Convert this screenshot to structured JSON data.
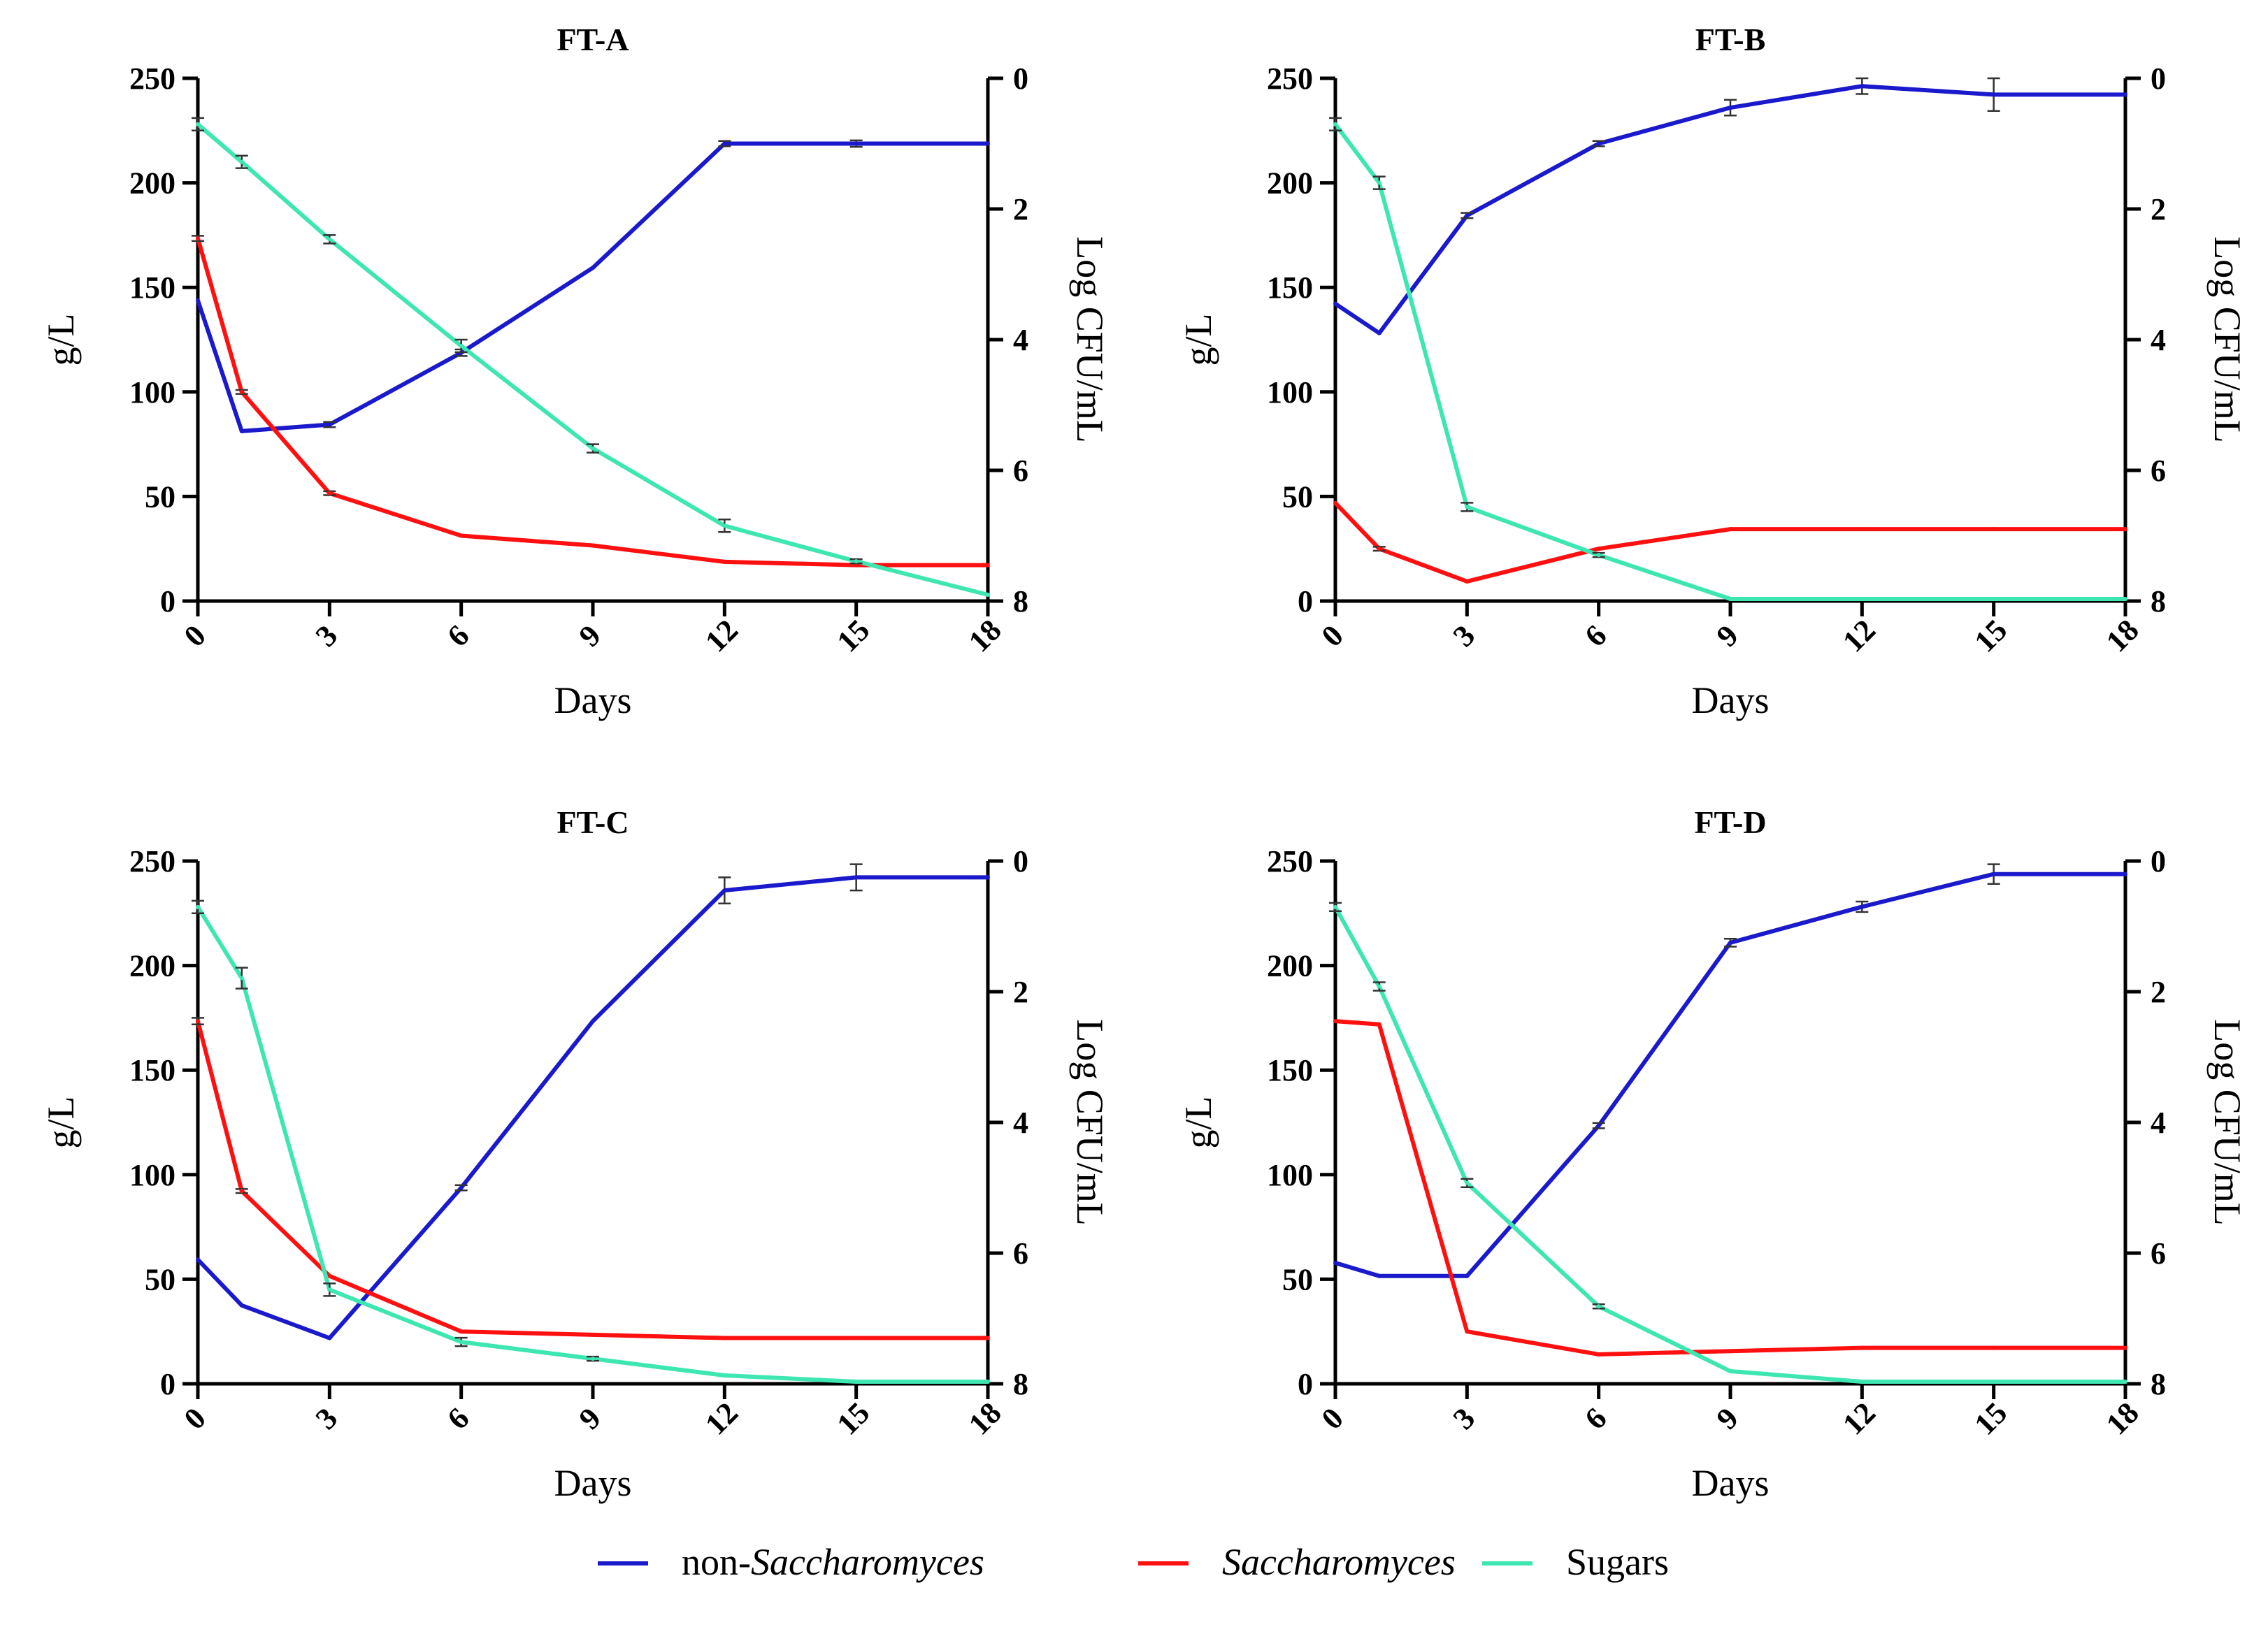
{
  "legend": {
    "items": [
      {
        "key": "non_sacch",
        "prefix": "non-",
        "italic": "Saccharomyces",
        "color": "#1a1acc"
      },
      {
        "key": "sacch",
        "prefix": "",
        "italic": "Saccharomyces",
        "color": "#ff1010"
      },
      {
        "key": "sugars",
        "prefix": "Sugars",
        "italic": "",
        "color": "#3ee6b2"
      }
    ]
  },
  "chart_data": [
    {
      "type": "line",
      "title": "FT-A",
      "xlabel": "Days",
      "ylabel": "g/L",
      "y2label": "Log CFU/mL",
      "xlim": [
        0,
        18
      ],
      "ylim": [
        0,
        250
      ],
      "y2lim": [
        0,
        8
      ],
      "y2_inverted": true,
      "x_ticks": [
        0,
        3,
        6,
        9,
        12,
        15,
        18
      ],
      "y_ticks": [
        0,
        50,
        100,
        150,
        200,
        250
      ],
      "y2_ticks": [
        0,
        2,
        4,
        6,
        8
      ],
      "series": [
        {
          "name": "non-Saccharomyces",
          "axis": "y2",
          "color": "#1a1acc",
          "x": [
            0,
            1,
            3,
            6,
            9,
            12,
            15,
            18
          ],
          "values": [
            3.4,
            5.4,
            5.3,
            4.2,
            2.9,
            1.0,
            1.0,
            1.0
          ],
          "err": [
            0,
            0,
            0.04,
            0.05,
            0,
            0.04,
            0.05,
            0
          ]
        },
        {
          "name": "Saccharomyces",
          "axis": "y2",
          "color": "#ff1010",
          "x": [
            0,
            1,
            3,
            6,
            9,
            12,
            15,
            18
          ],
          "values": [
            2.45,
            4.8,
            6.35,
            7.0,
            7.15,
            7.4,
            7.45,
            7.45
          ],
          "err": [
            0.04,
            0.03,
            0.03,
            0,
            0,
            0,
            0,
            0
          ]
        },
        {
          "name": "Sugars",
          "axis": "y",
          "color": "#3ee6b2",
          "x": [
            0,
            1,
            3,
            6,
            9,
            12,
            15,
            18
          ],
          "values": [
            228,
            210,
            173,
            122,
            73,
            36,
            19,
            3
          ],
          "err": [
            3,
            3,
            2,
            3,
            2,
            3,
            1,
            0
          ]
        }
      ]
    },
    {
      "type": "line",
      "title": "FT-B",
      "xlabel": "Days",
      "ylabel": "g/L",
      "y2label": "Log CFU/mL",
      "xlim": [
        0,
        18
      ],
      "ylim": [
        0,
        250
      ],
      "y2lim": [
        0,
        8
      ],
      "y2_inverted": true,
      "x_ticks": [
        0,
        3,
        6,
        9,
        12,
        15,
        18
      ],
      "y_ticks": [
        0,
        50,
        100,
        150,
        200,
        250
      ],
      "y2_ticks": [
        0,
        2,
        4,
        6,
        8
      ],
      "series": [
        {
          "name": "non-Saccharomyces",
          "axis": "y2",
          "color": "#1a1acc",
          "x": [
            0,
            1,
            3,
            6,
            9,
            12,
            15,
            18
          ],
          "values": [
            3.45,
            3.9,
            2.1,
            1.0,
            0.45,
            0.12,
            0.25,
            0.25
          ],
          "err": [
            0,
            0,
            0.04,
            0.04,
            0.12,
            0.12,
            0.25,
            0
          ]
        },
        {
          "name": "Saccharomyces",
          "axis": "y2",
          "color": "#ff1010",
          "x": [
            0,
            1,
            3,
            6,
            9,
            12,
            15,
            18
          ],
          "values": [
            6.5,
            7.2,
            7.7,
            7.2,
            6.9,
            6.9,
            6.9,
            6.9
          ],
          "err": [
            0,
            0.03,
            0,
            0,
            0,
            0,
            0,
            0
          ]
        },
        {
          "name": "Sugars",
          "axis": "y",
          "color": "#3ee6b2",
          "x": [
            0,
            1,
            3,
            6,
            9,
            12,
            15,
            18
          ],
          "values": [
            228,
            200,
            45,
            22,
            1,
            1,
            1,
            1
          ],
          "err": [
            3,
            3,
            2,
            1,
            0,
            0,
            0,
            0
          ]
        }
      ]
    },
    {
      "type": "line",
      "title": "FT-C",
      "xlabel": "Days",
      "ylabel": "g/L",
      "y2label": "Log CFU/mL",
      "xlim": [
        0,
        18
      ],
      "ylim": [
        0,
        250
      ],
      "y2lim": [
        0,
        8
      ],
      "y2_inverted": true,
      "x_ticks": [
        0,
        3,
        6,
        9,
        12,
        15,
        18
      ],
      "y_ticks": [
        0,
        50,
        100,
        150,
        200,
        250
      ],
      "y2_ticks": [
        0,
        2,
        4,
        6,
        8
      ],
      "series": [
        {
          "name": "non-Saccharomyces",
          "axis": "y2",
          "color": "#1a1acc",
          "x": [
            0,
            1,
            3,
            6,
            9,
            12,
            15,
            18
          ],
          "values": [
            6.1,
            6.8,
            7.3,
            5.0,
            2.45,
            0.45,
            0.25,
            0.25
          ],
          "err": [
            0,
            0,
            0,
            0.04,
            0,
            0.2,
            0.2,
            0
          ]
        },
        {
          "name": "Saccharomyces",
          "axis": "y2",
          "color": "#ff1010",
          "x": [
            0,
            1,
            3,
            6,
            9,
            12,
            15,
            18
          ],
          "values": [
            2.45,
            5.05,
            6.35,
            7.2,
            7.25,
            7.3,
            7.3,
            7.3
          ],
          "err": [
            0.05,
            0.03,
            0,
            0,
            0,
            0,
            0,
            0
          ]
        },
        {
          "name": "Sugars",
          "axis": "y",
          "color": "#3ee6b2",
          "x": [
            0,
            1,
            3,
            6,
            9,
            12,
            15,
            18
          ],
          "values": [
            228,
            194,
            45,
            20,
            12,
            4,
            1,
            1
          ],
          "err": [
            3,
            5,
            3,
            2,
            1,
            0,
            0,
            0
          ]
        }
      ]
    },
    {
      "type": "line",
      "title": "FT-D",
      "xlabel": "Days",
      "ylabel": "g/L",
      "y2label": "Log CFU/mL",
      "xlim": [
        0,
        18
      ],
      "ylim": [
        0,
        250
      ],
      "y2lim": [
        0,
        8
      ],
      "y2_inverted": true,
      "x_ticks": [
        0,
        3,
        6,
        9,
        12,
        15,
        18
      ],
      "y_ticks": [
        0,
        50,
        100,
        150,
        200,
        250
      ],
      "y2_ticks": [
        0,
        2,
        4,
        6,
        8
      ],
      "series": [
        {
          "name": "non-Saccharomyces",
          "axis": "y2",
          "color": "#1a1acc",
          "x": [
            0,
            1,
            3,
            6,
            9,
            12,
            15,
            18
          ],
          "values": [
            6.15,
            6.35,
            6.35,
            4.05,
            1.25,
            0.7,
            0.2,
            0.2
          ],
          "err": [
            0,
            0,
            0,
            0.04,
            0.06,
            0.08,
            0.15,
            0
          ]
        },
        {
          "name": "Saccharomyces",
          "axis": "y2",
          "color": "#ff1010",
          "x": [
            0,
            1,
            3,
            6,
            9,
            12,
            15,
            18
          ],
          "values": [
            2.45,
            2.5,
            7.2,
            7.55,
            7.5,
            7.45,
            7.45,
            7.45
          ],
          "err": [
            0,
            0,
            0,
            0,
            0,
            0,
            0,
            0
          ]
        },
        {
          "name": "Sugars",
          "axis": "y",
          "color": "#3ee6b2",
          "x": [
            0,
            1,
            3,
            6,
            9,
            12,
            15,
            18
          ],
          "values": [
            228,
            190,
            96,
            37,
            6,
            1,
            1,
            1
          ],
          "err": [
            2,
            2,
            2,
            1,
            0,
            0,
            0,
            0
          ]
        }
      ]
    }
  ]
}
